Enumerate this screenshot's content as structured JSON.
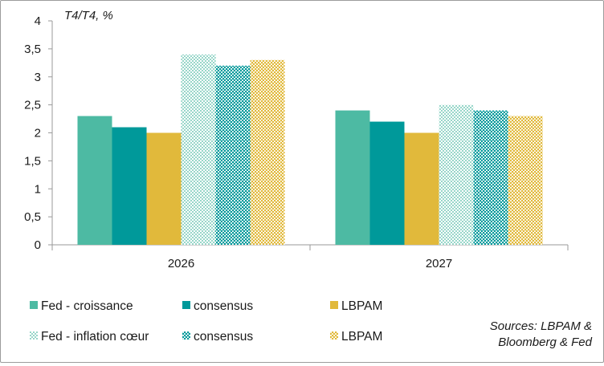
{
  "chart_data": {
    "type": "bar",
    "unit_label": "T4/T4, %",
    "categories": [
      "2026",
      "2027"
    ],
    "yticks": [
      "0",
      "0,5",
      "1",
      "1,5",
      "2",
      "2,5",
      "3",
      "3,5",
      "4"
    ],
    "ylim": [
      0,
      4
    ],
    "grid": false,
    "legend_position": "bottom",
    "series": [
      {
        "name": "Fed - croissance",
        "values": [
          2.3,
          2.4
        ],
        "color": "#4dbaa3",
        "pattern": "solid"
      },
      {
        "name": "consensus",
        "values": [
          2.1,
          2.2
        ],
        "color": "#00999a",
        "pattern": "solid"
      },
      {
        "name": "LBPAM",
        "values": [
          2.0,
          2.0
        ],
        "color": "#e1b93b",
        "pattern": "solid"
      },
      {
        "name": "Fed - inflation cœur",
        "values": [
          3.4,
          2.5
        ],
        "color": "#4dbaa3",
        "pattern": "dotted-light"
      },
      {
        "name": "consensus",
        "values": [
          3.2,
          2.4
        ],
        "color": "#00999a",
        "pattern": "dotted-dense"
      },
      {
        "name": "LBPAM",
        "values": [
          3.3,
          2.3
        ],
        "color": "#e1b93b",
        "pattern": "dotted-dense"
      }
    ],
    "source": [
      "Sources: LBPAM &",
      "Bloomberg & Fed"
    ]
  }
}
